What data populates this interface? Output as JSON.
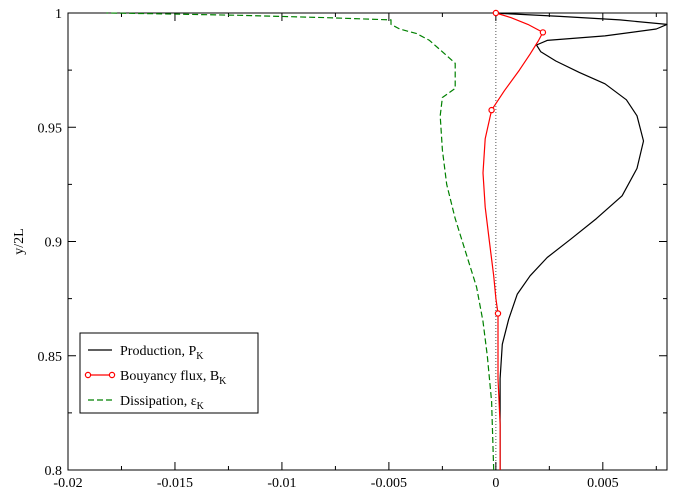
{
  "chart_data": {
    "type": "line",
    "title": "",
    "xlabel": "",
    "ylabel": "y/2L",
    "xlim": [
      -0.02,
      0.008
    ],
    "ylim": [
      0.8,
      1.0
    ],
    "grid": false,
    "legend_position": "bottom-left",
    "x_ticks": [
      -0.02,
      -0.015,
      -0.01,
      -0.005,
      0,
      0.005
    ],
    "x_tick_labels": [
      "-0.02",
      "-0.015",
      "-0.01",
      "-0.005",
      "0",
      "0.005"
    ],
    "y_ticks": [
      0.8,
      0.85,
      0.9,
      0.95,
      1.0
    ],
    "y_tick_labels": [
      "0.8",
      "0.85",
      "0.9",
      "0.95",
      "1"
    ],
    "zero_line": true,
    "series": [
      {
        "name": "Production, P",
        "subscript": "K",
        "color": "#000000",
        "dash": "solid",
        "marker": "none",
        "points": [
          [
            0.0002,
            0.8
          ],
          [
            0.0002,
            0.82
          ],
          [
            0.0002,
            0.84
          ],
          [
            0.0003,
            0.855
          ],
          [
            0.0006,
            0.866
          ],
          [
            0.001,
            0.877
          ],
          [
            0.0016,
            0.885
          ],
          [
            0.0024,
            0.893
          ],
          [
            0.0035,
            0.901
          ],
          [
            0.0047,
            0.91
          ],
          [
            0.0059,
            0.92
          ],
          [
            0.0066,
            0.932
          ],
          [
            0.0069,
            0.944
          ],
          [
            0.0066,
            0.955
          ],
          [
            0.0061,
            0.962
          ],
          [
            0.0051,
            0.969
          ],
          [
            0.0039,
            0.974
          ],
          [
            0.0028,
            0.979
          ],
          [
            0.0021,
            0.983
          ],
          [
            0.0019,
            0.986
          ],
          [
            0.0024,
            0.988
          ],
          [
            0.0051,
            0.99
          ],
          [
            0.0075,
            0.993
          ],
          [
            0.008,
            0.995
          ],
          [
            0.0058,
            0.997
          ],
          [
            0.003,
            0.9985
          ],
          [
            0.0003,
            0.9998
          ],
          [
            0.0,
            1.0
          ]
        ]
      },
      {
        "name": "Bouyancy flux, B",
        "subscript": "K",
        "color": "#ff0000",
        "dash": "solid",
        "marker": "circle",
        "marker_points": [
          [
            0.0,
            1.0
          ],
          [
            0.0022,
            0.9915
          ],
          [
            -0.0002,
            0.9575
          ],
          [
            0.0001,
            0.8685
          ]
        ],
        "points": [
          [
            0.0002,
            0.8
          ],
          [
            0.0002,
            0.82
          ],
          [
            0.0001,
            0.84
          ],
          [
            0.0001,
            0.86
          ],
          [
            0.0001,
            0.8685
          ],
          [
            0.0,
            0.875
          ],
          [
            -0.0001,
            0.885
          ],
          [
            -0.0003,
            0.9
          ],
          [
            -0.0005,
            0.915
          ],
          [
            -0.0006,
            0.93
          ],
          [
            -0.0005,
            0.945
          ],
          [
            -0.0002,
            0.9575
          ],
          [
            0.0004,
            0.966
          ],
          [
            0.0011,
            0.975
          ],
          [
            0.0016,
            0.982
          ],
          [
            0.002,
            0.988
          ],
          [
            0.0022,
            0.9915
          ],
          [
            0.0015,
            0.995
          ],
          [
            0.0007,
            0.998
          ],
          [
            0.0,
            1.0
          ]
        ]
      },
      {
        "name": "Dissipation, ε",
        "subscript": "K",
        "color": "#008000",
        "dash": "dashed",
        "marker": "none",
        "points": [
          [
            -0.0001,
            0.8
          ],
          [
            -0.0002,
            0.83
          ],
          [
            -0.0004,
            0.85
          ],
          [
            -0.0006,
            0.865
          ],
          [
            -0.0009,
            0.88
          ],
          [
            -0.0014,
            0.895
          ],
          [
            -0.0019,
            0.91
          ],
          [
            -0.0023,
            0.925
          ],
          [
            -0.0025,
            0.94
          ],
          [
            -0.0026,
            0.955
          ],
          [
            -0.0025,
            0.963
          ],
          [
            -0.0019,
            0.967
          ],
          [
            -0.0019,
            0.978
          ],
          [
            -0.0025,
            0.983
          ],
          [
            -0.0031,
            0.988
          ],
          [
            -0.0037,
            0.991
          ],
          [
            -0.0045,
            0.993
          ],
          [
            -0.0049,
            0.995
          ],
          [
            -0.0049,
            0.997
          ],
          [
            -0.008,
            0.998
          ],
          [
            -0.012,
            0.999
          ],
          [
            -0.016,
            0.9997
          ],
          [
            -0.0182,
            1.0
          ]
        ]
      }
    ]
  }
}
